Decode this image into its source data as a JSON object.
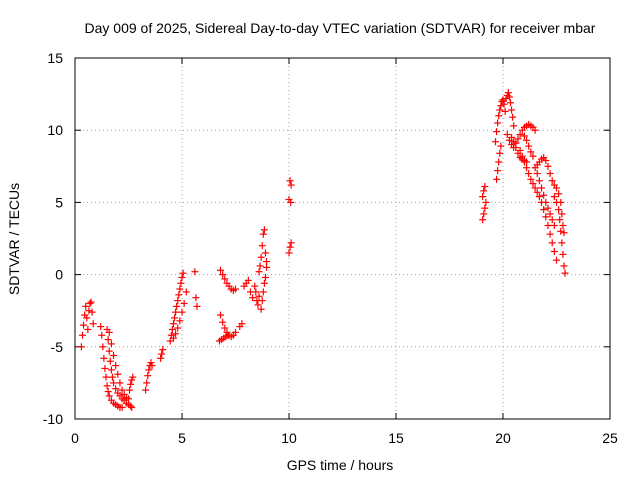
{
  "chart_data": {
    "type": "scatter",
    "title": "Day 009 of 2025, Sidereal Day-to-day VTEC variation (SDTVAR) for receiver mbar",
    "xlabel": "GPS time / hours",
    "ylabel": "SDTVAR / TECUs",
    "xlim": [
      0,
      25
    ],
    "ylim": [
      -10,
      15
    ],
    "xticks": [
      0,
      5,
      10,
      15,
      20,
      25
    ],
    "yticks": [
      -10,
      -5,
      0,
      5,
      10,
      15
    ],
    "grid": true,
    "marker": "+",
    "color": "#ff0000",
    "series": [
      {
        "name": "SDTVAR",
        "points": [
          [
            0.3,
            -5.0
          ],
          [
            0.35,
            -4.2
          ],
          [
            0.4,
            -3.5
          ],
          [
            0.45,
            -2.8
          ],
          [
            0.5,
            -2.2
          ],
          [
            0.55,
            -3.0
          ],
          [
            0.6,
            -3.8
          ],
          [
            0.65,
            -2.5
          ],
          [
            0.7,
            -2.0
          ],
          [
            0.75,
            -1.9
          ],
          [
            0.8,
            -2.6
          ],
          [
            0.85,
            -3.4
          ],
          [
            1.2,
            -3.6
          ],
          [
            1.25,
            -4.2
          ],
          [
            1.3,
            -5.0
          ],
          [
            1.35,
            -5.8
          ],
          [
            1.4,
            -6.5
          ],
          [
            1.45,
            -7.1
          ],
          [
            1.5,
            -7.7
          ],
          [
            1.55,
            -8.1
          ],
          [
            1.6,
            -8.4
          ],
          [
            1.7,
            -8.7
          ],
          [
            1.8,
            -8.9
          ],
          [
            1.9,
            -9.0
          ],
          [
            2.0,
            -9.1
          ],
          [
            2.1,
            -9.2
          ],
          [
            2.2,
            -9.2
          ],
          [
            1.5,
            -3.8
          ],
          [
            1.55,
            -4.5
          ],
          [
            1.6,
            -5.3
          ],
          [
            1.65,
            -6.0
          ],
          [
            1.7,
            -6.6
          ],
          [
            1.75,
            -7.1
          ],
          [
            1.8,
            -7.5
          ],
          [
            1.9,
            -7.9
          ],
          [
            2.0,
            -8.2
          ],
          [
            2.1,
            -8.4
          ],
          [
            2.2,
            -8.6
          ],
          [
            2.3,
            -8.7
          ],
          [
            2.4,
            -8.9
          ],
          [
            2.5,
            -9.0
          ],
          [
            2.6,
            -9.1
          ],
          [
            2.65,
            -9.2
          ],
          [
            1.6,
            -4.0
          ],
          [
            1.7,
            -4.8
          ],
          [
            1.8,
            -5.6
          ],
          [
            1.9,
            -6.3
          ],
          [
            2.0,
            -6.9
          ],
          [
            2.1,
            -7.5
          ],
          [
            2.2,
            -8.0
          ],
          [
            2.3,
            -8.3
          ],
          [
            2.4,
            -8.5
          ],
          [
            2.5,
            -8.6
          ],
          [
            2.55,
            -8.0
          ],
          [
            2.6,
            -7.6
          ],
          [
            2.65,
            -7.3
          ],
          [
            2.7,
            -7.1
          ],
          [
            3.3,
            -8.0
          ],
          [
            3.35,
            -7.5
          ],
          [
            3.4,
            -7.0
          ],
          [
            3.45,
            -6.6
          ],
          [
            3.5,
            -6.3
          ],
          [
            3.55,
            -6.1
          ],
          [
            3.6,
            -6.3
          ],
          [
            4.0,
            -5.8
          ],
          [
            4.05,
            -5.5
          ],
          [
            4.1,
            -5.2
          ],
          [
            4.45,
            -4.6
          ],
          [
            4.5,
            -4.2
          ],
          [
            4.55,
            -3.8
          ],
          [
            4.6,
            -3.4
          ],
          [
            4.65,
            -3.0
          ],
          [
            4.7,
            -2.6
          ],
          [
            4.75,
            -2.2
          ],
          [
            4.8,
            -1.8
          ],
          [
            4.85,
            -1.4
          ],
          [
            4.9,
            -1.0
          ],
          [
            4.95,
            -0.6
          ],
          [
            5.0,
            -0.2
          ],
          [
            5.05,
            0.1
          ],
          [
            4.6,
            -4.4
          ],
          [
            4.7,
            -4.1
          ],
          [
            4.8,
            -3.7
          ],
          [
            4.9,
            -3.2
          ],
          [
            5.0,
            -2.6
          ],
          [
            5.1,
            -2.0
          ],
          [
            5.2,
            -1.2
          ],
          [
            5.6,
            0.2
          ],
          [
            5.65,
            -1.6
          ],
          [
            5.7,
            -2.2
          ],
          [
            6.8,
            0.3
          ],
          [
            6.9,
            0.0
          ],
          [
            7.0,
            -0.3
          ],
          [
            7.1,
            -0.6
          ],
          [
            7.2,
            -0.8
          ],
          [
            7.3,
            -1.0
          ],
          [
            7.4,
            -1.1
          ],
          [
            7.5,
            -1.0
          ],
          [
            6.8,
            -2.8
          ],
          [
            6.9,
            -3.3
          ],
          [
            7.0,
            -3.7
          ],
          [
            7.1,
            -4.0
          ],
          [
            7.2,
            -4.2
          ],
          [
            7.3,
            -4.3
          ],
          [
            7.4,
            -4.2
          ],
          [
            7.5,
            -4.0
          ],
          [
            6.75,
            -4.6
          ],
          [
            6.85,
            -4.5
          ],
          [
            6.95,
            -4.4
          ],
          [
            7.05,
            -4.3
          ],
          [
            7.15,
            -4.2
          ],
          [
            7.7,
            -3.6
          ],
          [
            7.8,
            -3.4
          ],
          [
            7.9,
            -0.8
          ],
          [
            8.0,
            -0.6
          ],
          [
            8.1,
            -0.4
          ],
          [
            8.2,
            -1.2
          ],
          [
            8.3,
            -1.6
          ],
          [
            8.4,
            -0.8
          ],
          [
            8.45,
            -1.2
          ],
          [
            8.5,
            -1.8
          ],
          [
            8.55,
            -2.1
          ],
          [
            8.6,
            -1.5
          ],
          [
            8.7,
            -2.4
          ],
          [
            8.75,
            -1.8
          ],
          [
            8.8,
            -1.2
          ],
          [
            8.85,
            -0.6
          ],
          [
            8.9,
            -0.2
          ],
          [
            8.95,
            0.5
          ],
          [
            8.6,
            0.2
          ],
          [
            8.65,
            0.6
          ],
          [
            8.7,
            1.2
          ],
          [
            8.75,
            2.0
          ],
          [
            8.8,
            2.8
          ],
          [
            8.85,
            3.1
          ],
          [
            8.9,
            1.5
          ],
          [
            8.95,
            0.9
          ],
          [
            10.05,
            6.5
          ],
          [
            10.1,
            6.2
          ],
          [
            10.0,
            5.2
          ],
          [
            10.08,
            5.0
          ],
          [
            10.0,
            1.5
          ],
          [
            10.05,
            1.9
          ],
          [
            10.1,
            2.2
          ],
          [
            19.05,
            3.8
          ],
          [
            19.1,
            4.2
          ],
          [
            19.15,
            4.6
          ],
          [
            19.2,
            5.0
          ],
          [
            19.05,
            5.4
          ],
          [
            19.1,
            5.8
          ],
          [
            19.15,
            6.1
          ],
          [
            19.7,
            6.6
          ],
          [
            19.75,
            7.2
          ],
          [
            19.8,
            7.8
          ],
          [
            19.85,
            8.4
          ],
          [
            19.9,
            8.9
          ],
          [
            19.65,
            9.2
          ],
          [
            19.7,
            9.9
          ],
          [
            19.75,
            10.5
          ],
          [
            19.8,
            11.0
          ],
          [
            19.85,
            11.4
          ],
          [
            19.9,
            11.7
          ],
          [
            19.95,
            12.0
          ],
          [
            20.0,
            12.1
          ],
          [
            20.05,
            11.8
          ],
          [
            20.1,
            11.3
          ],
          [
            20.15,
            12.2
          ],
          [
            20.2,
            12.4
          ],
          [
            20.25,
            12.6
          ],
          [
            20.3,
            12.3
          ],
          [
            20.35,
            11.9
          ],
          [
            20.4,
            11.4
          ],
          [
            20.45,
            10.9
          ],
          [
            20.5,
            10.3
          ],
          [
            20.2,
            9.7
          ],
          [
            20.3,
            9.3
          ],
          [
            20.4,
            9.0
          ],
          [
            20.5,
            8.8
          ],
          [
            20.6,
            9.1
          ],
          [
            20.7,
            9.4
          ],
          [
            20.8,
            9.7
          ],
          [
            20.9,
            10.0
          ],
          [
            21.0,
            10.2
          ],
          [
            21.1,
            10.3
          ],
          [
            21.2,
            10.4
          ],
          [
            21.3,
            10.3
          ],
          [
            21.4,
            10.2
          ],
          [
            21.5,
            10.0
          ],
          [
            20.4,
            9.5
          ],
          [
            20.5,
            9.2
          ],
          [
            20.6,
            8.8
          ],
          [
            20.7,
            8.4
          ],
          [
            20.8,
            8.1
          ],
          [
            20.9,
            8.0
          ],
          [
            21.0,
            7.9
          ],
          [
            21.1,
            7.8
          ],
          [
            20.8,
            8.6
          ],
          [
            20.9,
            8.2
          ],
          [
            21.0,
            7.8
          ],
          [
            21.1,
            7.4
          ],
          [
            21.2,
            7.0
          ],
          [
            21.3,
            6.6
          ],
          [
            21.4,
            6.3
          ],
          [
            21.5,
            6.0
          ],
          [
            21.6,
            5.7
          ],
          [
            21.7,
            5.4
          ],
          [
            21.8,
            5.0
          ],
          [
            21.9,
            4.5
          ],
          [
            22.0,
            4.0
          ],
          [
            22.1,
            3.4
          ],
          [
            22.2,
            2.8
          ],
          [
            22.3,
            2.2
          ],
          [
            22.4,
            1.6
          ],
          [
            22.5,
            1.0
          ],
          [
            21.5,
            7.4
          ],
          [
            21.6,
            7.0
          ],
          [
            21.7,
            6.5
          ],
          [
            21.8,
            6.0
          ],
          [
            21.9,
            5.5
          ],
          [
            22.0,
            5.0
          ],
          [
            22.1,
            4.6
          ],
          [
            22.2,
            4.2
          ],
          [
            22.3,
            3.8
          ],
          [
            22.4,
            3.4
          ],
          [
            21.6,
            7.6
          ],
          [
            21.7,
            7.8
          ],
          [
            21.8,
            8.0
          ],
          [
            21.9,
            8.1
          ],
          [
            22.0,
            7.9
          ],
          [
            22.1,
            7.5
          ],
          [
            22.2,
            7.0
          ],
          [
            22.3,
            6.5
          ],
          [
            22.4,
            6.2
          ],
          [
            22.5,
            6.0
          ],
          [
            22.6,
            5.6
          ],
          [
            22.7,
            5.0
          ],
          [
            22.75,
            4.2
          ],
          [
            22.8,
            3.4
          ],
          [
            22.85,
            2.9
          ],
          [
            22.4,
            5.4
          ],
          [
            22.5,
            5.0
          ],
          [
            22.6,
            4.5
          ],
          [
            22.65,
            3.8
          ],
          [
            22.7,
            3.0
          ],
          [
            22.75,
            2.2
          ],
          [
            22.8,
            1.4
          ],
          [
            22.85,
            0.6
          ],
          [
            22.9,
            0.1
          ],
          [
            21.0,
            9.6
          ],
          [
            21.1,
            9.3
          ],
          [
            21.2,
            8.9
          ],
          [
            21.3,
            8.5
          ],
          [
            21.4,
            8.2
          ]
        ]
      }
    ]
  }
}
